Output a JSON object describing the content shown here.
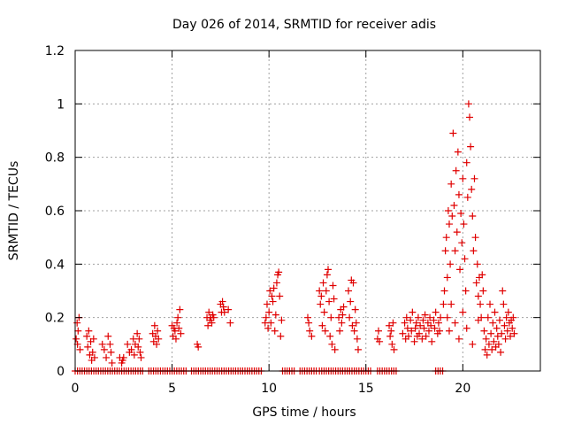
{
  "chart_data": {
    "type": "scatter",
    "title": "Day 026 of 2014, SRMTID for receiver adis",
    "xlabel": "GPS time / hours",
    "ylabel": "SRMTID / TECUs",
    "xlim": [
      0,
      24
    ],
    "ylim": [
      0,
      1.2
    ],
    "xticks": [
      "0",
      "5",
      "10",
      "15",
      "20"
    ],
    "yticks": [
      "0",
      "0.2",
      "0.4",
      "0.6",
      "0.8",
      "1",
      "1.2"
    ],
    "grid": true,
    "marker": "+",
    "color": "#e00000",
    "series": [
      {
        "name": "SRMTID",
        "points": [
          [
            0.05,
            0.12
          ],
          [
            0.1,
            0.18
          ],
          [
            0.12,
            0.1
          ],
          [
            0.15,
            0.15
          ],
          [
            0.2,
            0.2
          ],
          [
            0.25,
            0.08
          ],
          [
            0.6,
            0.13
          ],
          [
            0.65,
            0.09
          ],
          [
            0.7,
            0.15
          ],
          [
            0.75,
            0.06
          ],
          [
            0.8,
            0.11
          ],
          [
            0.85,
            0.04
          ],
          [
            0.9,
            0.07
          ],
          [
            0.95,
            0.12
          ],
          [
            1.0,
            0.05
          ],
          [
            1.4,
            0.1
          ],
          [
            1.5,
            0.08
          ],
          [
            1.6,
            0.05
          ],
          [
            1.7,
            0.13
          ],
          [
            1.8,
            0.1
          ],
          [
            1.85,
            0.07
          ],
          [
            1.9,
            0.03
          ],
          [
            2.3,
            0.05
          ],
          [
            2.4,
            0.03
          ],
          [
            2.45,
            0.04
          ],
          [
            2.5,
            0.05
          ],
          [
            2.7,
            0.1
          ],
          [
            2.8,
            0.07
          ],
          [
            2.9,
            0.08
          ],
          [
            3.0,
            0.12
          ],
          [
            3.05,
            0.06
          ],
          [
            3.1,
            0.1
          ],
          [
            3.2,
            0.14
          ],
          [
            3.25,
            0.09
          ],
          [
            3.3,
            0.12
          ],
          [
            3.35,
            0.07
          ],
          [
            3.4,
            0.05
          ],
          [
            4.0,
            0.14
          ],
          [
            4.05,
            0.11
          ],
          [
            4.1,
            0.17
          ],
          [
            4.15,
            0.13
          ],
          [
            4.2,
            0.1
          ],
          [
            4.25,
            0.15
          ],
          [
            4.3,
            0.12
          ],
          [
            5.0,
            0.17
          ],
          [
            5.05,
            0.13
          ],
          [
            5.1,
            0.16
          ],
          [
            5.15,
            0.15
          ],
          [
            5.2,
            0.12
          ],
          [
            5.25,
            0.18
          ],
          [
            5.3,
            0.2
          ],
          [
            5.35,
            0.16
          ],
          [
            5.4,
            0.23
          ],
          [
            5.45,
            0.14
          ],
          [
            6.3,
            0.1
          ],
          [
            6.35,
            0.09
          ],
          [
            6.8,
            0.2
          ],
          [
            6.85,
            0.17
          ],
          [
            6.9,
            0.22
          ],
          [
            6.95,
            0.19
          ],
          [
            7.0,
            0.2
          ],
          [
            7.05,
            0.18
          ],
          [
            7.1,
            0.21
          ],
          [
            7.15,
            0.2
          ],
          [
            7.5,
            0.25
          ],
          [
            7.55,
            0.22
          ],
          [
            7.6,
            0.26
          ],
          [
            7.65,
            0.24
          ],
          [
            7.7,
            0.22
          ],
          [
            7.9,
            0.23
          ],
          [
            8.0,
            0.18
          ],
          [
            9.8,
            0.18
          ],
          [
            9.85,
            0.2
          ],
          [
            9.9,
            0.25
          ],
          [
            9.95,
            0.16
          ],
          [
            10.0,
            0.22
          ],
          [
            10.05,
            0.3
          ],
          [
            10.1,
            0.18
          ],
          [
            10.15,
            0.28
          ],
          [
            10.2,
            0.26
          ],
          [
            10.25,
            0.31
          ],
          [
            10.3,
            0.15
          ],
          [
            10.35,
            0.21
          ],
          [
            10.4,
            0.33
          ],
          [
            10.45,
            0.36
          ],
          [
            10.5,
            0.37
          ],
          [
            10.55,
            0.28
          ],
          [
            10.6,
            0.13
          ],
          [
            10.65,
            0.19
          ],
          [
            12.0,
            0.2
          ],
          [
            12.05,
            0.18
          ],
          [
            12.1,
            0.15
          ],
          [
            12.2,
            0.13
          ],
          [
            12.6,
            0.3
          ],
          [
            12.65,
            0.25
          ],
          [
            12.7,
            0.28
          ],
          [
            12.75,
            0.17
          ],
          [
            12.8,
            0.33
          ],
          [
            12.85,
            0.22
          ],
          [
            12.9,
            0.15
          ],
          [
            12.95,
            0.3
          ],
          [
            13.0,
            0.36
          ],
          [
            13.05,
            0.38
          ],
          [
            13.1,
            0.26
          ],
          [
            13.15,
            0.13
          ],
          [
            13.2,
            0.2
          ],
          [
            13.25,
            0.1
          ],
          [
            13.3,
            0.32
          ],
          [
            13.35,
            0.27
          ],
          [
            13.4,
            0.08
          ],
          [
            13.6,
            0.2
          ],
          [
            13.65,
            0.15
          ],
          [
            13.7,
            0.23
          ],
          [
            13.75,
            0.18
          ],
          [
            13.8,
            0.21
          ],
          [
            13.85,
            0.24
          ],
          [
            14.1,
            0.3
          ],
          [
            14.15,
            0.2
          ],
          [
            14.2,
            0.26
          ],
          [
            14.25,
            0.34
          ],
          [
            14.3,
            0.17
          ],
          [
            14.35,
            0.33
          ],
          [
            14.4,
            0.15
          ],
          [
            14.45,
            0.23
          ],
          [
            14.5,
            0.18
          ],
          [
            14.55,
            0.12
          ],
          [
            14.6,
            0.08
          ],
          [
            15.6,
            0.12
          ],
          [
            15.65,
            0.15
          ],
          [
            15.7,
            0.11
          ],
          [
            16.2,
            0.17
          ],
          [
            16.25,
            0.13
          ],
          [
            16.3,
            0.15
          ],
          [
            16.35,
            0.1
          ],
          [
            16.4,
            0.18
          ],
          [
            16.45,
            0.08
          ],
          [
            16.9,
            0.14
          ],
          [
            17.0,
            0.18
          ],
          [
            17.05,
            0.12
          ],
          [
            17.1,
            0.2
          ],
          [
            17.15,
            0.16
          ],
          [
            17.2,
            0.13
          ],
          [
            17.3,
            0.19
          ],
          [
            17.35,
            0.15
          ],
          [
            17.4,
            0.22
          ],
          [
            17.5,
            0.11
          ],
          [
            17.55,
            0.16
          ],
          [
            17.6,
            0.18
          ],
          [
            17.65,
            0.13
          ],
          [
            17.7,
            0.2
          ],
          [
            17.75,
            0.14
          ],
          [
            17.8,
            0.17
          ],
          [
            17.9,
            0.12
          ],
          [
            17.95,
            0.19
          ],
          [
            18.0,
            0.16
          ],
          [
            18.05,
            0.21
          ],
          [
            18.1,
            0.13
          ],
          [
            18.2,
            0.18
          ],
          [
            18.25,
            0.15
          ],
          [
            18.3,
            0.2
          ],
          [
            18.35,
            0.17
          ],
          [
            18.4,
            0.11
          ],
          [
            18.5,
            0.19
          ],
          [
            18.55,
            0.16
          ],
          [
            18.6,
            0.22
          ],
          [
            18.7,
            0.14
          ],
          [
            18.75,
            0.18
          ],
          [
            18.8,
            0.15
          ],
          [
            18.85,
            0.2
          ],
          [
            19.0,
            0.25
          ],
          [
            19.05,
            0.3
          ],
          [
            19.1,
            0.45
          ],
          [
            19.15,
            0.5
          ],
          [
            19.2,
            0.35
          ],
          [
            19.25,
            0.6
          ],
          [
            19.3,
            0.55
          ],
          [
            19.35,
            0.4
          ],
          [
            19.4,
            0.7
          ],
          [
            19.45,
            0.58
          ],
          [
            19.5,
            0.89
          ],
          [
            19.55,
            0.62
          ],
          [
            19.6,
            0.45
          ],
          [
            19.65,
            0.75
          ],
          [
            19.7,
            0.52
          ],
          [
            19.75,
            0.82
          ],
          [
            19.8,
            0.66
          ],
          [
            19.85,
            0.38
          ],
          [
            19.9,
            0.59
          ],
          [
            19.95,
            0.48
          ],
          [
            20.0,
            0.72
          ],
          [
            20.05,
            0.55
          ],
          [
            20.1,
            0.42
          ],
          [
            20.15,
            0.3
          ],
          [
            20.2,
            0.78
          ],
          [
            20.25,
            0.65
          ],
          [
            20.3,
            1.0
          ],
          [
            20.35,
            0.95
          ],
          [
            20.4,
            0.84
          ],
          [
            20.45,
            0.68
          ],
          [
            20.5,
            0.58
          ],
          [
            20.55,
            0.45
          ],
          [
            20.6,
            0.72
          ],
          [
            20.65,
            0.5
          ],
          [
            20.7,
            0.33
          ],
          [
            20.75,
            0.4
          ],
          [
            20.8,
            0.28
          ],
          [
            20.85,
            0.35
          ],
          [
            20.9,
            0.25
          ],
          [
            20.95,
            0.2
          ],
          [
            21.0,
            0.36
          ],
          [
            21.05,
            0.3
          ],
          [
            19.2,
            0.2
          ],
          [
            19.3,
            0.15
          ],
          [
            19.4,
            0.25
          ],
          [
            19.6,
            0.18
          ],
          [
            19.8,
            0.12
          ],
          [
            20.0,
            0.22
          ],
          [
            20.2,
            0.16
          ],
          [
            20.5,
            0.1
          ],
          [
            20.8,
            0.19
          ],
          [
            21.1,
            0.15
          ],
          [
            21.15,
            0.08
          ],
          [
            21.2,
            0.12
          ],
          [
            21.25,
            0.06
          ],
          [
            21.3,
            0.2
          ],
          [
            21.35,
            0.1
          ],
          [
            21.4,
            0.25
          ],
          [
            21.45,
            0.14
          ],
          [
            21.5,
            0.08
          ],
          [
            21.55,
            0.18
          ],
          [
            21.6,
            0.11
          ],
          [
            21.65,
            0.22
          ],
          [
            21.7,
            0.09
          ],
          [
            21.75,
            0.16
          ],
          [
            21.8,
            0.13
          ],
          [
            21.85,
            0.1
          ],
          [
            21.9,
            0.19
          ],
          [
            21.95,
            0.07
          ],
          [
            22.0,
            0.14
          ],
          [
            22.05,
            0.3
          ],
          [
            22.1,
            0.25
          ],
          [
            22.15,
            0.17
          ],
          [
            22.2,
            0.12
          ],
          [
            22.25,
            0.2
          ],
          [
            22.3,
            0.15
          ],
          [
            22.35,
            0.22
          ],
          [
            22.4,
            0.18
          ],
          [
            22.45,
            0.13
          ],
          [
            22.5,
            0.19
          ],
          [
            22.55,
            0.16
          ],
          [
            22.6,
            0.2
          ],
          [
            22.65,
            0.14
          ]
        ]
      },
      {
        "name": "zero",
        "ranges": [
          [
            0.0,
            3.5
          ],
          [
            3.8,
            5.8
          ],
          [
            6.0,
            9.7
          ],
          [
            10.7,
            11.3
          ],
          [
            11.6,
            12.5
          ],
          [
            12.6,
            15.3
          ],
          [
            15.6,
            16.6
          ],
          [
            18.6,
            19.0
          ]
        ],
        "value": 0
      }
    ]
  }
}
